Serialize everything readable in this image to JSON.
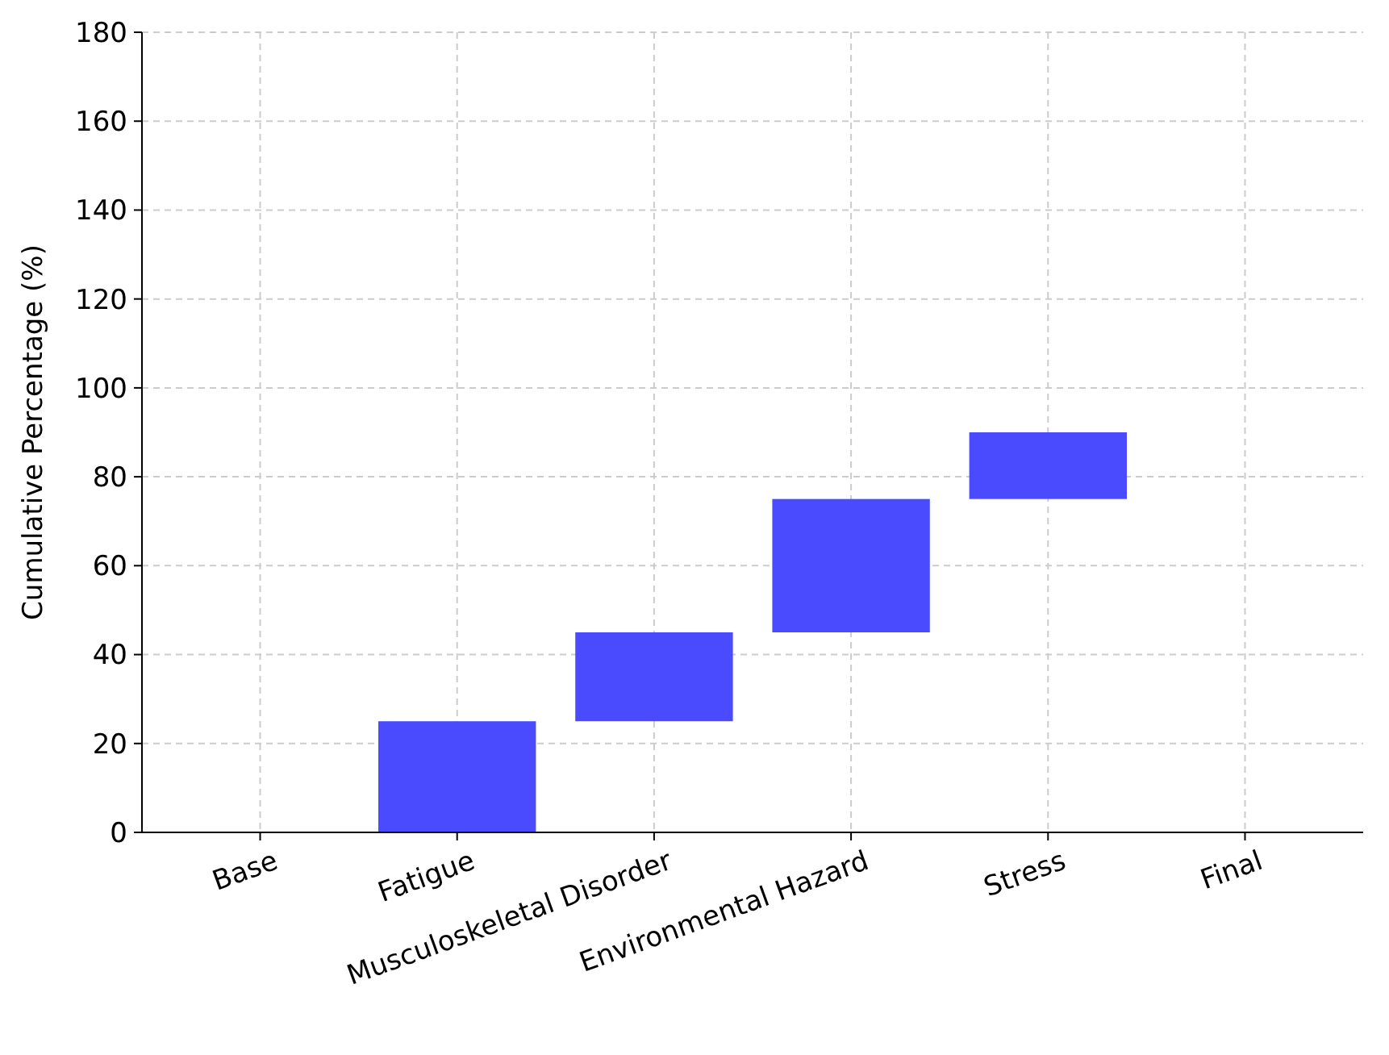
{
  "chart_data": {
    "type": "bar",
    "ylabel": "Cumulative Percentage (%)",
    "categories": [
      "Base",
      "Fatigue",
      "Musculoskeletal Disorder",
      "Environmental Hazard",
      "Stress",
      "Final"
    ],
    "values": [
      null,
      25,
      20,
      30,
      15,
      null
    ],
    "base": [
      null,
      0,
      25,
      45,
      75,
      null
    ],
    "color": "#4a4aff",
    "ylim": [
      0,
      180
    ],
    "yticks": [
      0,
      20,
      40,
      60,
      80,
      100,
      120,
      140,
      160,
      180
    ],
    "grid": true
  }
}
